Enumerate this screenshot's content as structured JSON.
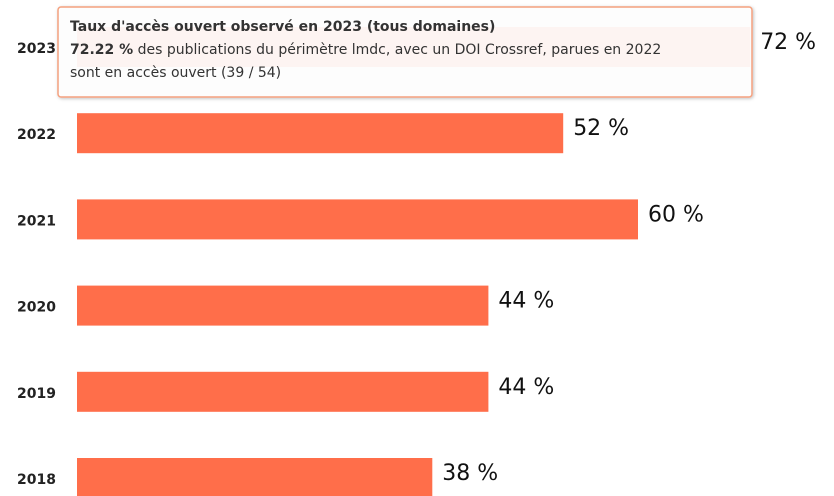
{
  "chart_data": {
    "type": "bar",
    "orientation": "horizontal",
    "categories": [
      "2023",
      "2022",
      "2021",
      "2020",
      "2019",
      "2018"
    ],
    "values": [
      72,
      52,
      60,
      44,
      44,
      38
    ],
    "value_labels": [
      "72 %",
      "52 %",
      "60 %",
      "44 %",
      "44 %",
      "38 %"
    ],
    "color": "#ff6e4a",
    "xlim": [
      0,
      80
    ],
    "tooltip": {
      "title": "Taux d'accès ouvert observé en 2023 (tous domaines)",
      "value": "72.22 %",
      "line1": "des publications du périmètre lmdc, avec un DOI Crossref, parues en 2022",
      "line2": "sont en accès ouvert (39 / 54)"
    }
  }
}
